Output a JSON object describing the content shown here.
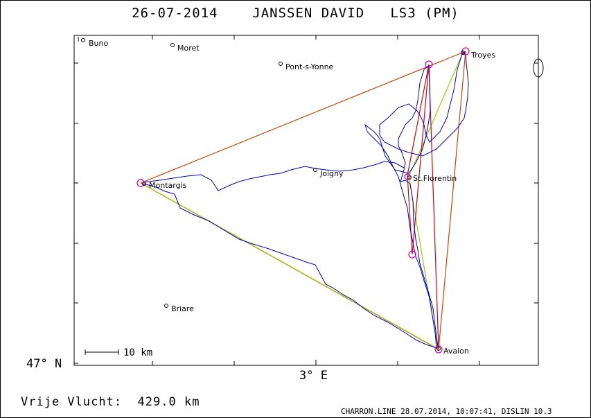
{
  "header": {
    "date": "26-07-2014",
    "pilot": "JANSSEN DAVID",
    "glider": "LS3 (PM)"
  },
  "axes": {
    "lat_label": "47° N",
    "lon_label": "3° E"
  },
  "scale_bar": {
    "label": "10 km"
  },
  "towns": [
    {
      "name": "Buno"
    },
    {
      "name": "Moret"
    },
    {
      "name": "Pont-s-Yonne"
    },
    {
      "name": "Troyes"
    },
    {
      "name": "Joigny"
    },
    {
      "name": "St.Florentin"
    },
    {
      "name": "Montargis"
    },
    {
      "name": "Briare"
    },
    {
      "name": "Avalon"
    }
  ],
  "footer": {
    "distance_label": "Vrije Vlucht:",
    "distance_value": "429.0 km",
    "credit": "CHARRON.LINE 28.07.2014, 10:07:41, DISLIN 10.3"
  },
  "colors": {
    "track": "#0000cc",
    "task_outer": "#cc4400",
    "task_inner": "#cc0000",
    "task_alt": "#99cc00",
    "turnpoint": "#cc00cc",
    "frame": "#000000"
  }
}
